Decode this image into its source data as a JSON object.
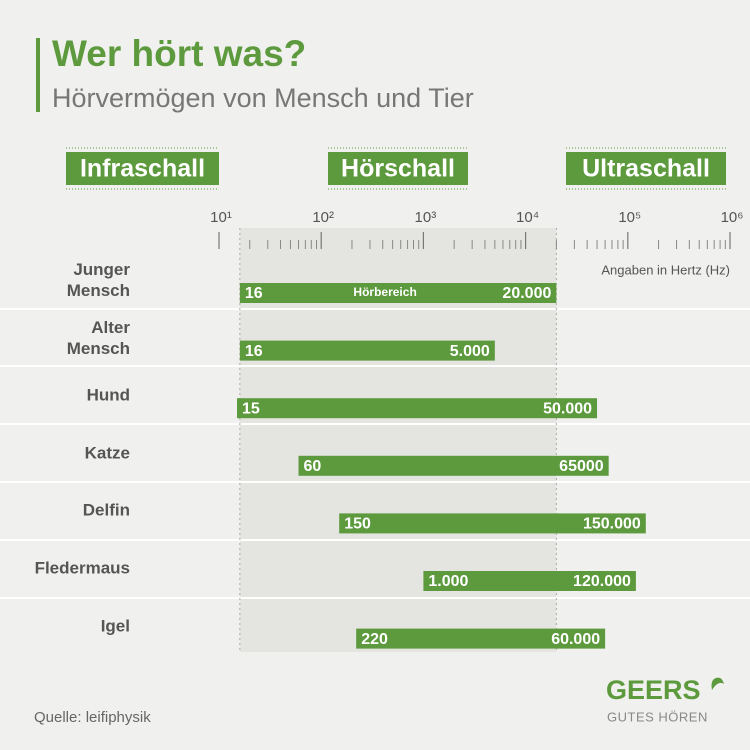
{
  "chart_data": {
    "type": "range-bar",
    "title": "Wer hört was?",
    "subtitle": "Hörvermögen von Mensch und Tier",
    "sections": [
      "Infraschall",
      "Hörschall",
      "Ultraschall"
    ],
    "categories": [
      "Junger Mensch",
      "Alter Mensch",
      "Hund",
      "Katze",
      "Delfin",
      "Fledermaus",
      "Igel"
    ],
    "series": [
      {
        "values": [
          16,
          16,
          15,
          60,
          150,
          1000,
          220
        ],
        "value_labels": [
          "16",
          "16",
          "15",
          "60",
          "150",
          "1.000",
          "220"
        ]
      },
      {
        "values": [
          20000,
          5000,
          50000,
          65000,
          150000,
          120000,
          60000
        ],
        "value_labels": [
          "20.000",
          "5.000",
          "50.000",
          "65000",
          "150.000",
          "120.000",
          "60.000"
        ]
      }
    ],
    "color": "#5c9a3d",
    "xscale": "log",
    "xlim": [
      10,
      1000000
    ],
    "xticks": [
      {
        "value": 10,
        "label": "10¹"
      },
      {
        "value": 100,
        "label": "10²"
      },
      {
        "value": 1000,
        "label": "10³"
      },
      {
        "value": 10000,
        "label": "10⁴"
      },
      {
        "value": 100000,
        "label": "10⁵"
      },
      {
        "value": 1000000,
        "label": "10⁶"
      }
    ],
    "xminorticks": [
      20,
      30,
      40,
      50,
      60,
      70,
      80,
      90,
      200,
      300,
      400,
      500,
      600,
      700,
      800,
      900,
      2000,
      3000,
      4000,
      5000,
      6000,
      7000,
      8000,
      9000,
      20000,
      30000,
      40000,
      50000,
      60000,
      70000,
      80000,
      90000,
      200000,
      300000,
      400000,
      500000,
      600000,
      700000,
      800000,
      900000
    ],
    "bar_annotation": "Hörbereich",
    "unit_note": "Angaben in Hertz (Hz)",
    "source": "Quelle: leifiphysik",
    "brand": "GEERS",
    "tagline": "GUTES HÖREN"
  }
}
